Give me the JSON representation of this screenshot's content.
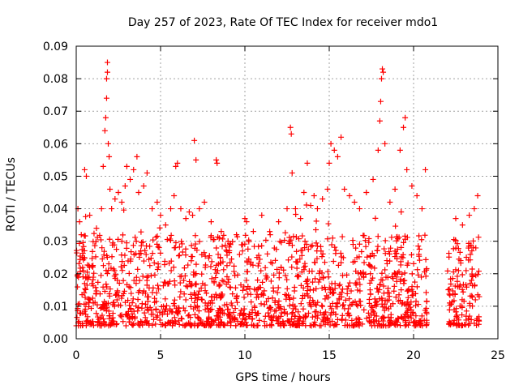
{
  "chart_data": {
    "type": "scatter",
    "title": "Day 257 of 2023, Rate Of TEC Index for receiver mdo1",
    "xlabel": "GPS time / hours",
    "ylabel": "ROTI / TECUs",
    "xlim": [
      0,
      25
    ],
    "ylim": [
      0,
      0.09
    ],
    "xticks": [
      0,
      5,
      10,
      15,
      20,
      25
    ],
    "yticks": [
      0,
      0.01,
      0.02,
      0.03,
      0.04,
      0.05,
      0.06,
      0.07,
      0.08,
      0.09
    ],
    "grid": true,
    "marker": "plus",
    "color": "#ff0000",
    "data_coverage_hours": [
      [
        0,
        20.8
      ],
      [
        22.0,
        23.9
      ]
    ],
    "series": [
      {
        "points": [
          [
            0.1,
            0.04
          ],
          [
            0.2,
            0.036
          ],
          [
            0.3,
            0.032
          ],
          [
            0.5,
            0.052
          ],
          [
            0.6,
            0.05
          ],
          [
            0.8,
            0.038
          ],
          [
            1.2,
            0.034
          ],
          [
            1.5,
            0.04
          ],
          [
            1.6,
            0.053
          ],
          [
            1.7,
            0.064
          ],
          [
            1.75,
            0.068
          ],
          [
            1.8,
            0.074
          ],
          [
            1.8,
            0.08
          ],
          [
            1.85,
            0.082
          ],
          [
            1.85,
            0.085
          ],
          [
            1.9,
            0.06
          ],
          [
            1.95,
            0.056
          ],
          [
            2.0,
            0.046
          ],
          [
            2.1,
            0.04
          ],
          [
            2.3,
            0.043
          ],
          [
            2.5,
            0.045
          ],
          [
            2.7,
            0.042
          ],
          [
            2.9,
            0.047
          ],
          [
            3.0,
            0.053
          ],
          [
            3.2,
            0.049
          ],
          [
            3.4,
            0.052
          ],
          [
            3.6,
            0.056
          ],
          [
            3.7,
            0.045
          ],
          [
            4.0,
            0.047
          ],
          [
            4.2,
            0.051
          ],
          [
            4.5,
            0.04
          ],
          [
            4.8,
            0.042
          ],
          [
            5.0,
            0.038
          ],
          [
            5.3,
            0.035
          ],
          [
            5.6,
            0.04
          ],
          [
            5.8,
            0.044
          ],
          [
            5.9,
            0.053
          ],
          [
            6.0,
            0.054
          ],
          [
            6.2,
            0.04
          ],
          [
            6.5,
            0.037
          ],
          [
            6.7,
            0.039
          ],
          [
            6.9,
            0.038
          ],
          [
            7.0,
            0.061
          ],
          [
            7.1,
            0.055
          ],
          [
            7.3,
            0.04
          ],
          [
            7.6,
            0.042
          ],
          [
            8.0,
            0.036
          ],
          [
            8.3,
            0.055
          ],
          [
            8.35,
            0.054
          ],
          [
            8.6,
            0.033
          ],
          [
            9.0,
            0.03
          ],
          [
            9.5,
            0.032
          ],
          [
            10.0,
            0.037
          ],
          [
            10.1,
            0.036
          ],
          [
            10.5,
            0.033
          ],
          [
            11.0,
            0.038
          ],
          [
            11.5,
            0.032
          ],
          [
            12.0,
            0.036
          ],
          [
            12.5,
            0.04
          ],
          [
            12.7,
            0.065
          ],
          [
            12.75,
            0.063
          ],
          [
            12.8,
            0.051
          ],
          [
            13.0,
            0.04
          ],
          [
            13.3,
            0.037
          ],
          [
            13.5,
            0.045
          ],
          [
            13.7,
            0.054
          ],
          [
            13.9,
            0.041
          ],
          [
            14.1,
            0.044
          ],
          [
            14.3,
            0.04
          ],
          [
            14.6,
            0.043
          ],
          [
            14.9,
            0.046
          ],
          [
            15.0,
            0.054
          ],
          [
            15.1,
            0.06
          ],
          [
            15.3,
            0.058
          ],
          [
            15.5,
            0.056
          ],
          [
            15.7,
            0.062
          ],
          [
            15.9,
            0.046
          ],
          [
            16.2,
            0.044
          ],
          [
            16.5,
            0.042
          ],
          [
            16.8,
            0.04
          ],
          [
            17.2,
            0.045
          ],
          [
            17.6,
            0.049
          ],
          [
            17.9,
            0.058
          ],
          [
            18.0,
            0.067
          ],
          [
            18.05,
            0.073
          ],
          [
            18.1,
            0.08
          ],
          [
            18.15,
            0.083
          ],
          [
            18.2,
            0.082
          ],
          [
            18.3,
            0.06
          ],
          [
            18.6,
            0.042
          ],
          [
            18.9,
            0.046
          ],
          [
            19.2,
            0.058
          ],
          [
            19.4,
            0.065
          ],
          [
            19.5,
            0.068
          ],
          [
            19.6,
            0.052
          ],
          [
            19.9,
            0.047
          ],
          [
            20.2,
            0.044
          ],
          [
            20.5,
            0.04
          ],
          [
            20.7,
            0.052
          ],
          [
            22.5,
            0.037
          ],
          [
            22.9,
            0.035
          ],
          [
            23.3,
            0.038
          ],
          [
            23.6,
            0.04
          ],
          [
            23.8,
            0.044
          ]
        ]
      }
    ]
  }
}
